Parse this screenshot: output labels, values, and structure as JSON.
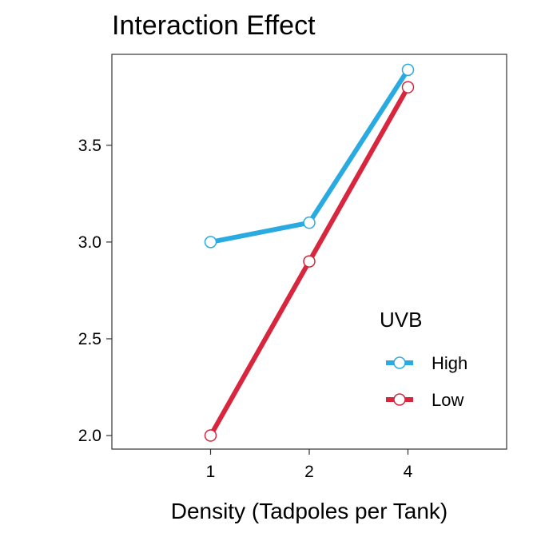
{
  "chart_data": {
    "type": "line",
    "title": "Interaction Effect",
    "xlabel": "Density (Tadpoles per Tank)",
    "ylabel": "",
    "categories": [
      "1",
      "2",
      "4"
    ],
    "yticks": [
      "2.0",
      "2.5",
      "3.0",
      "3.5"
    ],
    "ylim": [
      1.93,
      3.97
    ],
    "grid": false,
    "legend": {
      "title": "UVB",
      "position": "right-bottom-inside"
    },
    "series": [
      {
        "name": "High",
        "color": "#29abe2",
        "values": [
          3.0,
          3.1,
          3.89
        ]
      },
      {
        "name": "Low",
        "color": "#d7263d",
        "values": [
          2.0,
          2.9,
          3.8
        ]
      }
    ]
  }
}
